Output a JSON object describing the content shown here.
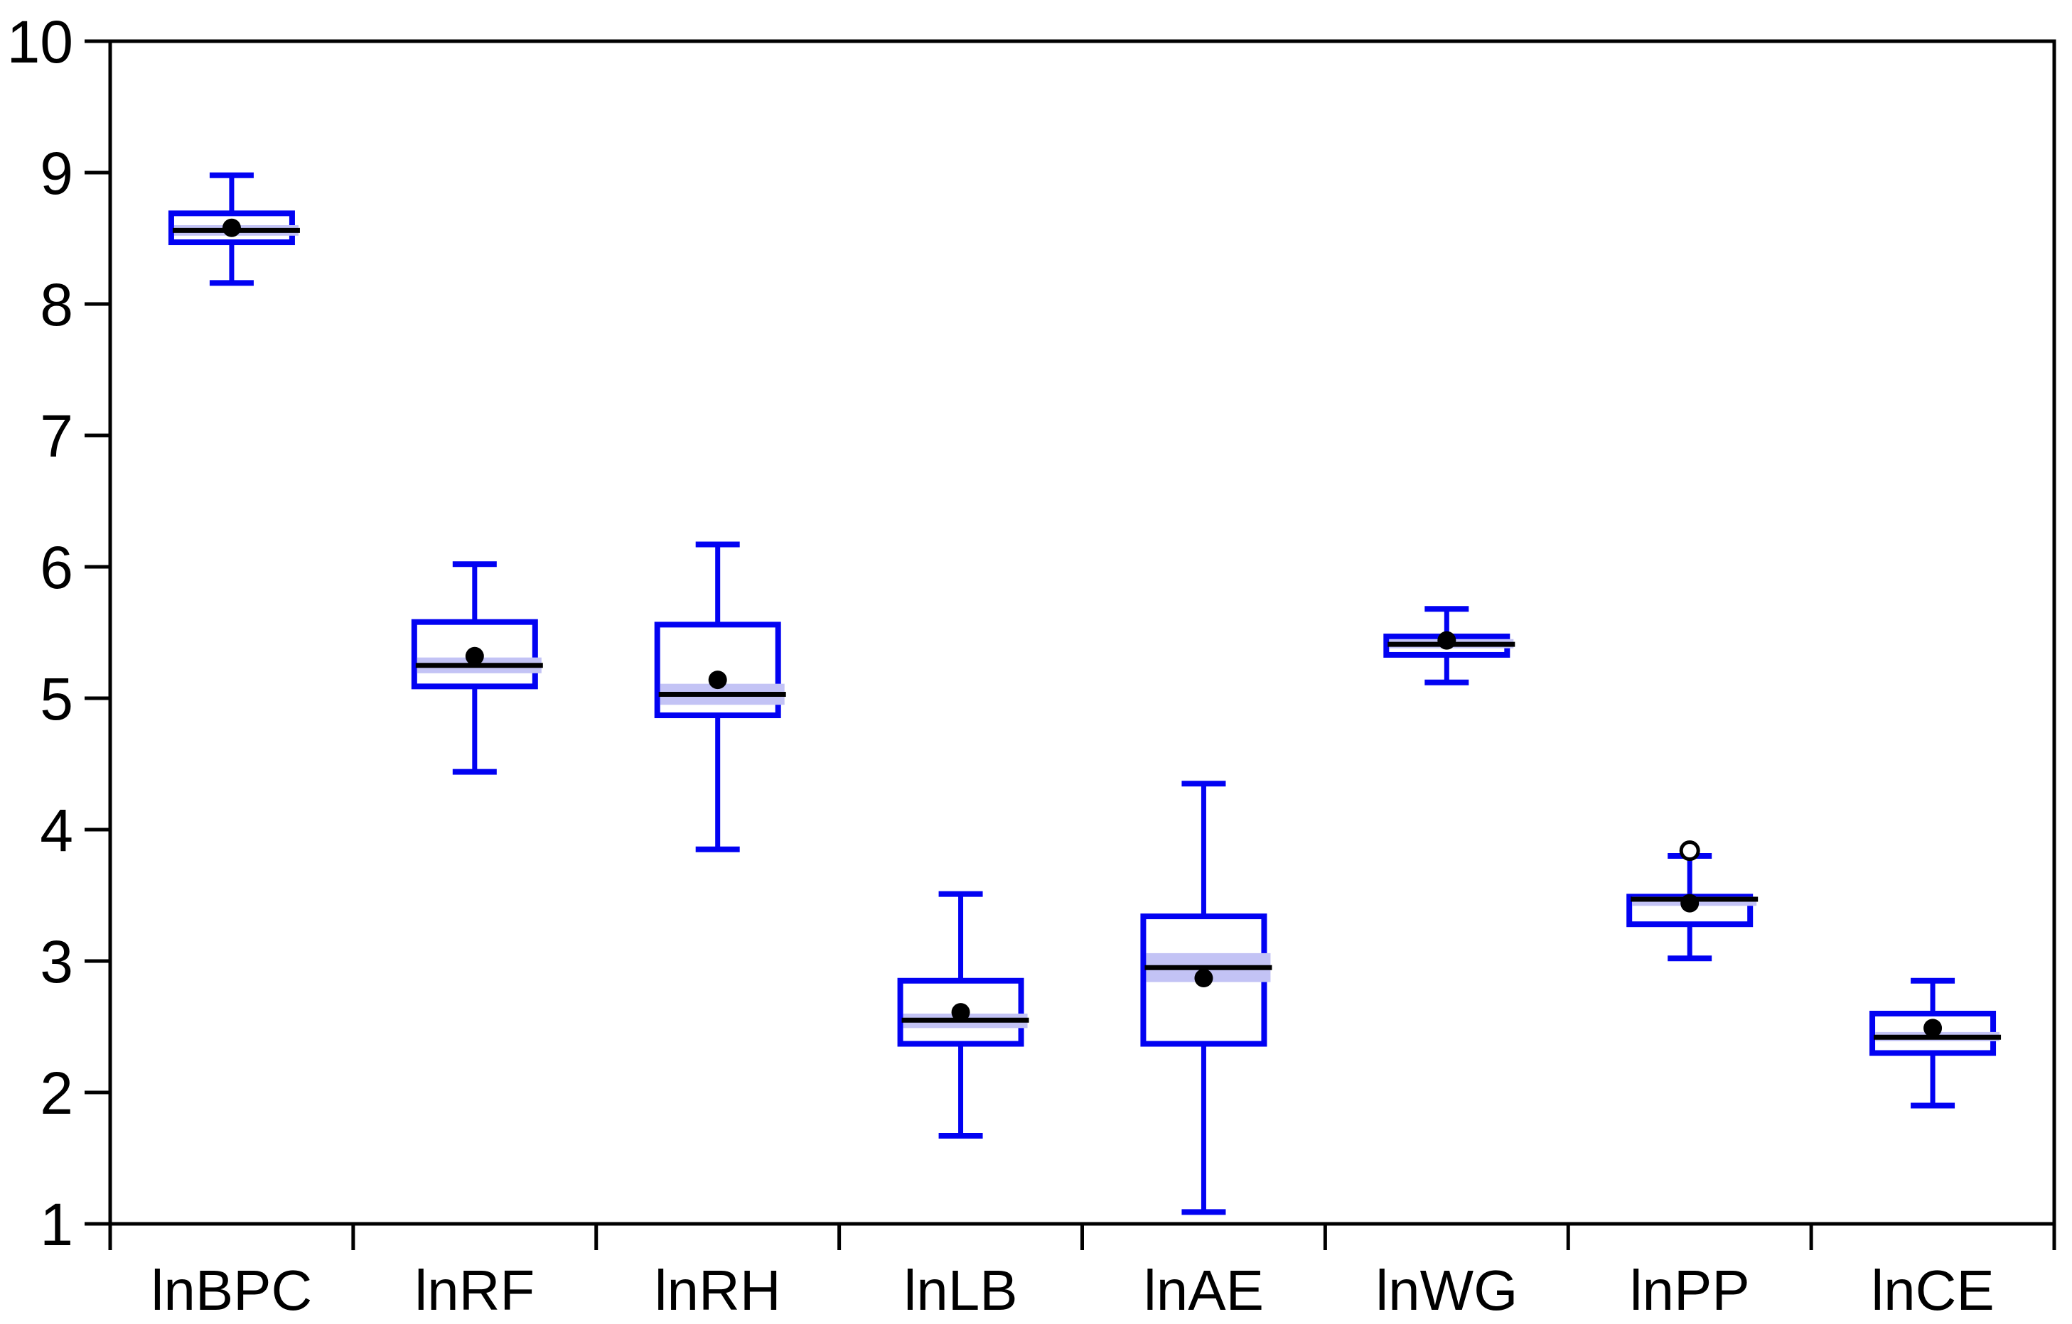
{
  "figure": {
    "background": "#ffffff",
    "title": "",
    "type_label": "boxplot"
  },
  "chart_data": {
    "type": "boxplot",
    "title": "",
    "xlabel": "",
    "ylabel": "",
    "ylim": [
      1,
      10
    ],
    "y_ticks": [
      1,
      2,
      3,
      4,
      5,
      6,
      7,
      8,
      9,
      10
    ],
    "grid": false,
    "frame": true,
    "legend": null,
    "colors": {
      "box_stroke": "#0202f2",
      "whisker": "#0202f2",
      "median": "#000000",
      "median_band": "#c3c3f5",
      "mean_dot": "#000000",
      "outlier_stroke": "#000000",
      "axis": "#000000",
      "plot_bg": "#ffffff"
    },
    "categories": [
      "lnBPC",
      "lnRF",
      "lnRH",
      "lnLB",
      "lnAE",
      "lnWG",
      "lnPP",
      "lnCE"
    ],
    "series": [
      {
        "name": "lnBPC",
        "whisker_low": 8.16,
        "q1": 8.47,
        "median": 8.56,
        "mean": 8.58,
        "q3": 8.69,
        "whisker_high": 8.98,
        "band_low": 8.52,
        "band_high": 8.6,
        "outliers": []
      },
      {
        "name": "lnRF",
        "whisker_low": 4.44,
        "q1": 5.09,
        "median": 5.25,
        "mean": 5.32,
        "q3": 5.58,
        "whisker_high": 6.02,
        "band_low": 5.19,
        "band_high": 5.31,
        "outliers": []
      },
      {
        "name": "lnRH",
        "whisker_low": 3.85,
        "q1": 4.87,
        "median": 5.03,
        "mean": 5.14,
        "q3": 5.56,
        "whisker_high": 6.17,
        "band_low": 4.95,
        "band_high": 5.11,
        "outliers": []
      },
      {
        "name": "lnLB",
        "whisker_low": 1.67,
        "q1": 2.37,
        "median": 2.55,
        "mean": 2.61,
        "q3": 2.85,
        "whisker_high": 3.51,
        "band_low": 2.49,
        "band_high": 2.6,
        "outliers": []
      },
      {
        "name": "lnAE",
        "whisker_low": 1.09,
        "q1": 2.37,
        "median": 2.95,
        "mean": 2.87,
        "q3": 3.34,
        "whisker_high": 4.35,
        "band_low": 2.84,
        "band_high": 3.06,
        "outliers": []
      },
      {
        "name": "lnWG",
        "whisker_low": 5.12,
        "q1": 5.33,
        "median": 5.41,
        "mean": 5.44,
        "q3": 5.47,
        "whisker_high": 5.68,
        "band_low": 5.38,
        "band_high": 5.45,
        "outliers": []
      },
      {
        "name": "lnPP",
        "whisker_low": 3.02,
        "q1": 3.28,
        "median": 3.47,
        "mean": 3.44,
        "q3": 3.49,
        "whisker_high": 3.8,
        "band_low": 3.42,
        "band_high": 3.49,
        "outliers": [
          3.84
        ]
      },
      {
        "name": "lnCE",
        "whisker_low": 1.9,
        "q1": 2.3,
        "median": 2.42,
        "mean": 2.49,
        "q3": 2.6,
        "whisker_high": 2.85,
        "band_low": 2.39,
        "band_high": 2.46,
        "outliers": []
      }
    ]
  }
}
